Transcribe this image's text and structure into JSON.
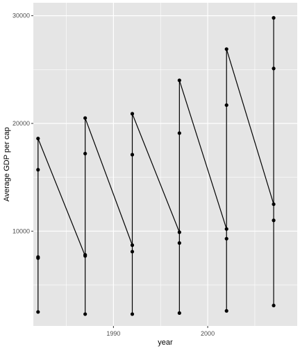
{
  "chart_data": {
    "type": "line",
    "title": "",
    "xlabel": "year",
    "ylabel": "Average GDP per cap",
    "x_tick_labels": [
      "1990",
      "2000"
    ],
    "y_tick_labels": [
      "10000",
      "20000",
      "30000"
    ],
    "xlim": [
      1981.5,
      2009.5
    ],
    "ylim": [
      1200,
      31200
    ],
    "x_ticks": [
      1990,
      2000
    ],
    "x_minor_ticks": [
      1985,
      1995,
      2005
    ],
    "y_ticks": [
      10000,
      20000,
      30000
    ],
    "y_minor_ticks": [
      5000,
      15000,
      25000
    ],
    "grid": true,
    "background": "#e5e5e5",
    "grid_color": "#ffffff",
    "line_color": "#000000",
    "point_color": "#000000",
    "path_points": [
      {
        "x": 1982,
        "y": 2500
      },
      {
        "x": 1982,
        "y": 7500
      },
      {
        "x": 1982,
        "y": 7600
      },
      {
        "x": 1982,
        "y": 15700
      },
      {
        "x": 1982,
        "y": 18600
      },
      {
        "x": 1987,
        "y": 7700
      },
      {
        "x": 1987,
        "y": 2300
      },
      {
        "x": 1987,
        "y": 7800
      },
      {
        "x": 1987,
        "y": 17200
      },
      {
        "x": 1987,
        "y": 20500
      },
      {
        "x": 1992,
        "y": 8700
      },
      {
        "x": 1992,
        "y": 2300
      },
      {
        "x": 1992,
        "y": 8100
      },
      {
        "x": 1992,
        "y": 17100
      },
      {
        "x": 1992,
        "y": 20900
      },
      {
        "x": 1997,
        "y": 9900
      },
      {
        "x": 1997,
        "y": 2400
      },
      {
        "x": 1997,
        "y": 8900
      },
      {
        "x": 1997,
        "y": 19100
      },
      {
        "x": 1997,
        "y": 24000
      },
      {
        "x": 2002,
        "y": 10200
      },
      {
        "x": 2002,
        "y": 2600
      },
      {
        "x": 2002,
        "y": 9300
      },
      {
        "x": 2002,
        "y": 21700
      },
      {
        "x": 2002,
        "y": 26900
      },
      {
        "x": 2007,
        "y": 12500
      },
      {
        "x": 2007,
        "y": 3100
      },
      {
        "x": 2007,
        "y": 11000
      },
      {
        "x": 2007,
        "y": 25100
      },
      {
        "x": 2007,
        "y": 29800
      }
    ]
  }
}
